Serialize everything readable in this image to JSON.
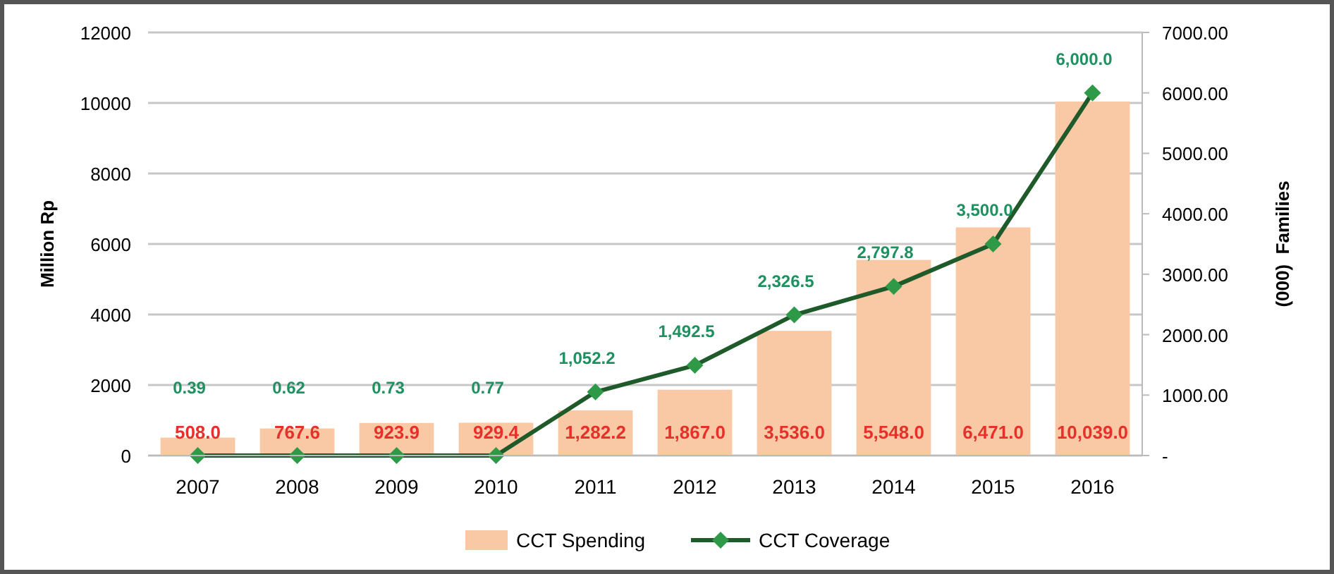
{
  "chart_data": {
    "type": "bar",
    "ylabel": "Million Rp",
    "y2label": "(000)  Families",
    "categories": [
      "2007",
      "2008",
      "2009",
      "2010",
      "2011",
      "2012",
      "2013",
      "2014",
      "2015",
      "2016"
    ],
    "series": [
      {
        "name": "CCT Spending",
        "color": "#f9c8a4",
        "values": [
          508.0,
          767.6,
          923.9,
          929.4,
          1282.2,
          1867.0,
          3536.0,
          5548.0,
          6471.0,
          10039.0
        ],
        "value_labels": [
          "508.0",
          "767.6",
          "923.9",
          "929.4",
          "1,282.2",
          "1,867.0",
          "3,536.0",
          "5,548.0",
          "6,471.0",
          "10,039.0"
        ]
      },
      {
        "name": "CCT Coverage",
        "type": "line",
        "axis": "y2",
        "color": "#1f5a2a",
        "values": [
          0.39,
          0.62,
          0.73,
          0.77,
          1052.2,
          1492.5,
          2326.5,
          2797.8,
          3500.0,
          6000.0
        ],
        "value_labels": [
          "0.39",
          "0.62",
          "0.73",
          "0.77",
          "1,052.2",
          "1,492.5",
          "2,326.5",
          "2,797.8",
          "3,500.0",
          "6,000.0"
        ]
      }
    ],
    "ylim": [
      0,
      12000
    ],
    "yticks": [
      0,
      2000,
      4000,
      6000,
      8000,
      10000,
      12000
    ],
    "y2lim": [
      0,
      7000
    ],
    "y2ticks": [
      {
        "value": 0,
        "label": "-"
      },
      {
        "value": 1000,
        "label": "1000.00"
      },
      {
        "value": 2000,
        "label": "2000.00"
      },
      {
        "value": 3000,
        "label": "3000.00"
      },
      {
        "value": 4000,
        "label": "4000.00"
      },
      {
        "value": 5000,
        "label": "5000.00"
      },
      {
        "value": 6000,
        "label": "6000.00"
      },
      {
        "value": 7000,
        "label": "7000.00"
      }
    ],
    "grid": "y",
    "legend": "bottom",
    "marker": "diamond",
    "line_style": "solid"
  }
}
